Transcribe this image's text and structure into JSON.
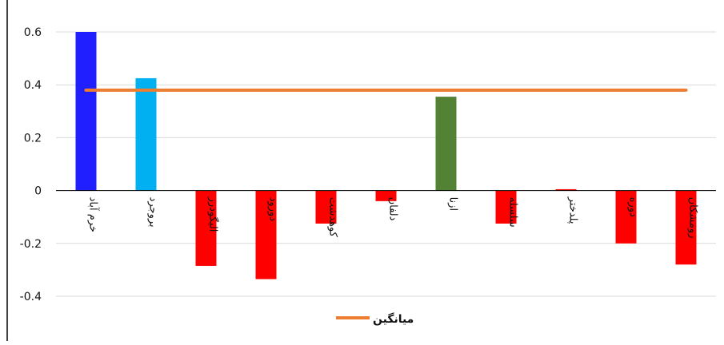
{
  "chart_data": {
    "type": "bar",
    "title": "",
    "xlabel": "",
    "ylabel": "",
    "ylim": [
      -0.4,
      0.6
    ],
    "yticks": [
      -0.4,
      -0.2,
      0,
      0.2,
      0.4,
      0.6
    ],
    "grid": true,
    "legend_position": "bottom",
    "categories": [
      "خرم آباد",
      "بروجرد",
      "الیگودرز",
      "دورود",
      "کوهدشت",
      "دلفان",
      "ازنا",
      "سلسله",
      "پلدختر",
      "دوره",
      "رومشکان"
    ],
    "values": [
      0.6,
      0.425,
      -0.285,
      -0.335,
      -0.125,
      -0.04,
      0.355,
      -0.125,
      0.005,
      -0.2,
      -0.28
    ],
    "bar_colors": [
      "#1f1fff",
      "#00b0f0",
      "#ff0000",
      "#ff0000",
      "#ff0000",
      "#ff0000",
      "#548235",
      "#ff0000",
      "#ff0000",
      "#ff0000",
      "#ff0000"
    ],
    "reference_line": {
      "name": "میانگین",
      "value": 0.38,
      "color": "#ed7d31"
    }
  }
}
